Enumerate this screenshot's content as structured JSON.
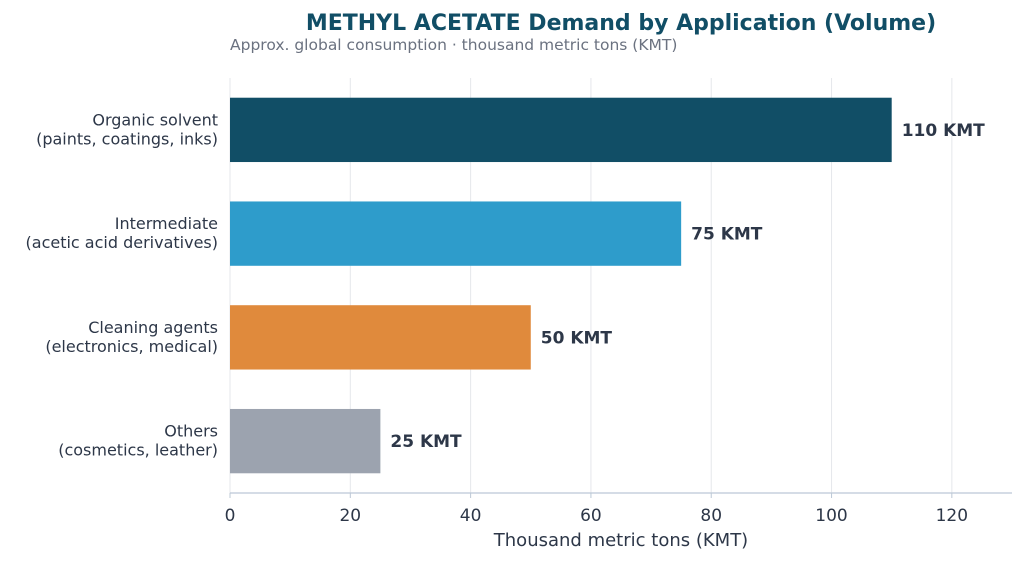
{
  "chart_data": {
    "type": "bar",
    "orientation": "horizontal",
    "title": "METHYL ACETATE Demand by Application (Volume)",
    "subtitle": "Approx. global consumption · thousand metric tons (KMT)",
    "xlabel": "Thousand metric tons (KMT)",
    "ylabel": "",
    "xlim": [
      0,
      130
    ],
    "xticks": [
      0,
      20,
      40,
      60,
      80,
      100,
      120
    ],
    "grid": true,
    "categories": [
      [
        "Organic solvent",
        "(paints, coatings, inks)"
      ],
      [
        "Intermediate",
        "(acetic acid derivatives)"
      ],
      [
        "Cleaning agents",
        "(electronics, medical)"
      ],
      [
        "Others",
        "(cosmetics, leather)"
      ]
    ],
    "values": [
      110,
      75,
      50,
      25
    ],
    "value_labels": [
      "110 KMT",
      "75 KMT",
      "50 KMT",
      "25 KMT"
    ],
    "colors": [
      "#114e66",
      "#2e9ccb",
      "#e08a3c",
      "#9ca3af"
    ]
  },
  "style": {
    "title_color": "#114e66",
    "subtitle_color": "#6b7280",
    "text_color": "#2d3748",
    "grid_color": "#e5e7eb",
    "axis_color": "#bcc8d6"
  }
}
